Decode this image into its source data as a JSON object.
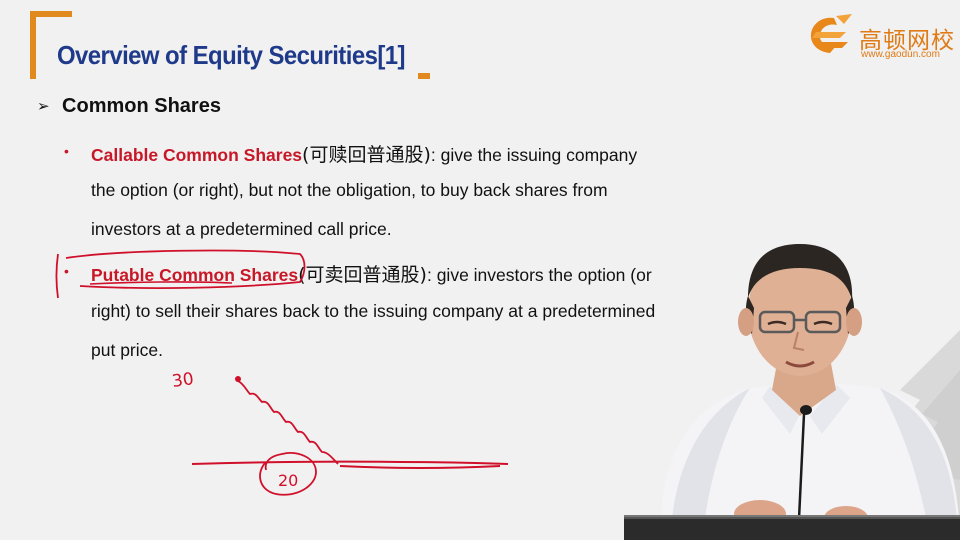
{
  "slide": {
    "title": "Overview of Equity Securities[1]",
    "section_marker": "➢",
    "section_title": "Common Shares"
  },
  "logo": {
    "name": "高顿网校",
    "url": "www.gaodun.com"
  },
  "bullets": [
    {
      "marker": "•",
      "term": "Callable Common Shares",
      "term_cn": "(可赎回普通股)",
      "first_line_rest": ": give the issuing company",
      "continuation_lines": [
        "the option (or right), but not the obligation, to buy back shares from",
        "investors at a predetermined call price."
      ]
    },
    {
      "marker": "•",
      "term": "Putable Common Shares",
      "term_cn": "(可卖回普通股)",
      "first_line_rest": ": give investors the option (or",
      "continuation_lines": [
        "right) to sell their shares back to the issuing company at a predetermined",
        "put price."
      ]
    }
  ],
  "annotations": {
    "price_high": "30",
    "price_low": "20"
  },
  "colors": {
    "title": "#1f3a8a",
    "accent_orange": "#e08a1e",
    "term_red": "#c81828",
    "ink_red": "#d0102a"
  }
}
